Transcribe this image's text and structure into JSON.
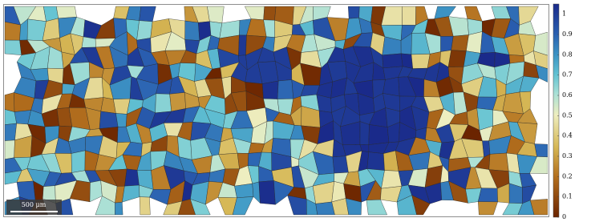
{
  "chart_data": {
    "type": "colorbar",
    "clim": [
      0,
      1.05
    ],
    "cticks": [
      0,
      0.1,
      0.2,
      0.3,
      0.4,
      0.5,
      0.6,
      0.7,
      0.8,
      0.9,
      1
    ],
    "scale_bar_label": "500 μm"
  }
}
